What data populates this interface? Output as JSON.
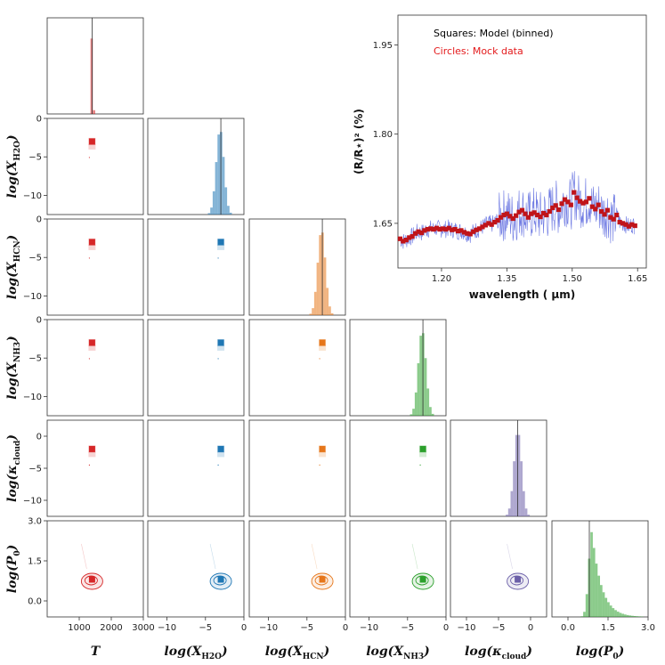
{
  "chart_data": [
    {
      "type": "corner",
      "parameters": [
        {
          "key": "T",
          "label_main": "T",
          "label_sub": "",
          "color": "#d62728",
          "truth": 1400,
          "hist_peak": 1400,
          "hist_spread": 25,
          "scatter_x": 1400,
          "ticks": [
            1000,
            2000,
            3000
          ],
          "range": [
            0,
            3000
          ]
        },
        {
          "key": "H2O",
          "label_main": "log(X",
          "label_sub": "H2O",
          "label_end": ")",
          "color": "#1f77b4",
          "truth": -3.0,
          "hist_peak": -3.1,
          "hist_spread": 0.5,
          "scatter_x": -3.0,
          "ticks": [
            -10,
            -5,
            0
          ],
          "range": [
            -12.5,
            0
          ]
        },
        {
          "key": "HCN",
          "label_main": "log(X",
          "label_sub": "HCN",
          "label_end": ")",
          "color": "#e6761a",
          "truth": -3.0,
          "hist_peak": -3.1,
          "hist_spread": 0.5,
          "scatter_x": -3.0,
          "ticks": [
            -10,
            -5,
            0
          ],
          "range": [
            -12.5,
            0
          ]
        },
        {
          "key": "NH3",
          "label_main": "log(X",
          "label_sub": "NH3",
          "label_end": ")",
          "color": "#2ca02c",
          "truth": -3.0,
          "hist_peak": -3.1,
          "hist_spread": 0.5,
          "scatter_x": -3.0,
          "ticks": [
            -10,
            -5,
            0
          ],
          "range": [
            -12.5,
            0
          ]
        },
        {
          "key": "kappa",
          "label_main": "log(κ",
          "label_sub": "cloud",
          "label_end": ")",
          "color": "#6b5fa8",
          "truth": -2.0,
          "hist_peak": -2.0,
          "hist_spread": 0.6,
          "scatter_x": -2.0,
          "ticks": [
            -10,
            -5,
            0
          ],
          "range": [
            -12.5,
            2.5
          ]
        },
        {
          "key": "P0",
          "label_main": "log(P",
          "label_sub": "0",
          "label_end": ")",
          "color": "#2ca02c",
          "truth": 0.8,
          "hist_peak": 0.9,
          "hist_spread": 0.2,
          "scatter_x": 0.8,
          "ticks": [
            0.0,
            1.5,
            3.0
          ],
          "range": [
            -0.6,
            3.0
          ]
        }
      ],
      "row_ticks": {
        "H2O": [
          "0",
          "−5",
          "−10"
        ],
        "HCN": [
          "0",
          "−5",
          "−10"
        ],
        "NH3": [
          "0",
          "−5",
          "−10"
        ],
        "kappa": [
          "0",
          "−5",
          "−10"
        ],
        "P0": [
          "3.0",
          "1.5",
          "0.0"
        ]
      },
      "col_ticks": {
        "T": [
          "1000",
          "2000",
          "3000"
        ],
        "H2O": [
          "−10",
          "−5",
          "0"
        ],
        "HCN": [
          "−10",
          "−5",
          "0"
        ],
        "NH3": [
          "−10",
          "−5",
          "0"
        ],
        "kappa": [
          "−10",
          "−5",
          "0"
        ],
        "P0": [
          "0.0",
          "1.5",
          "3.0"
        ]
      }
    },
    {
      "type": "line",
      "title": "",
      "xlabel": "wavelength ( μm)",
      "ylabel": "(R/R⋆)² (%)",
      "xlim": [
        1.1,
        1.67
      ],
      "ylim": [
        1.575,
        2.0
      ],
      "xticks": [
        "1.20",
        "1.35",
        "1.50",
        "1.65"
      ],
      "yticks": [
        "1.65",
        "1.80",
        "1.95"
      ],
      "legend": [
        {
          "label": "Squares: Model (binned)",
          "color": "#000000"
        },
        {
          "label": "Circles: Mock data",
          "color": "#e31a1c"
        }
      ],
      "binned_points": [
        [
          1.105,
          1.624
        ],
        [
          1.112,
          1.62
        ],
        [
          1.119,
          1.622
        ],
        [
          1.126,
          1.626
        ],
        [
          1.133,
          1.628
        ],
        [
          1.14,
          1.633
        ],
        [
          1.147,
          1.636
        ],
        [
          1.154,
          1.634
        ],
        [
          1.161,
          1.638
        ],
        [
          1.168,
          1.64
        ],
        [
          1.175,
          1.641
        ],
        [
          1.182,
          1.64
        ],
        [
          1.189,
          1.642
        ],
        [
          1.196,
          1.64
        ],
        [
          1.203,
          1.641
        ],
        [
          1.21,
          1.64
        ],
        [
          1.217,
          1.642
        ],
        [
          1.224,
          1.639
        ],
        [
          1.231,
          1.64
        ],
        [
          1.238,
          1.637
        ],
        [
          1.245,
          1.638
        ],
        [
          1.252,
          1.635
        ],
        [
          1.259,
          1.633
        ],
        [
          1.266,
          1.632
        ],
        [
          1.273,
          1.636
        ],
        [
          1.28,
          1.639
        ],
        [
          1.287,
          1.641
        ],
        [
          1.294,
          1.644
        ],
        [
          1.301,
          1.647
        ],
        [
          1.308,
          1.65
        ],
        [
          1.315,
          1.648
        ],
        [
          1.322,
          1.652
        ],
        [
          1.329,
          1.655
        ],
        [
          1.336,
          1.66
        ],
        [
          1.343,
          1.664
        ],
        [
          1.35,
          1.666
        ],
        [
          1.357,
          1.662
        ],
        [
          1.364,
          1.658
        ],
        [
          1.371,
          1.663
        ],
        [
          1.378,
          1.669
        ],
        [
          1.385,
          1.672
        ],
        [
          1.392,
          1.666
        ],
        [
          1.399,
          1.66
        ],
        [
          1.406,
          1.666
        ],
        [
          1.413,
          1.668
        ],
        [
          1.42,
          1.664
        ],
        [
          1.427,
          1.661
        ],
        [
          1.434,
          1.667
        ],
        [
          1.441,
          1.664
        ],
        [
          1.448,
          1.67
        ],
        [
          1.455,
          1.676
        ],
        [
          1.462,
          1.68
        ],
        [
          1.469,
          1.673
        ],
        [
          1.476,
          1.683
        ],
        [
          1.483,
          1.69
        ],
        [
          1.49,
          1.686
        ],
        [
          1.497,
          1.681
        ],
        [
          1.504,
          1.702
        ],
        [
          1.511,
          1.693
        ],
        [
          1.518,
          1.687
        ],
        [
          1.525,
          1.684
        ],
        [
          1.532,
          1.686
        ],
        [
          1.539,
          1.692
        ],
        [
          1.546,
          1.678
        ],
        [
          1.553,
          1.674
        ],
        [
          1.56,
          1.681
        ],
        [
          1.567,
          1.67
        ],
        [
          1.574,
          1.665
        ],
        [
          1.581,
          1.672
        ],
        [
          1.588,
          1.66
        ],
        [
          1.595,
          1.657
        ],
        [
          1.602,
          1.664
        ],
        [
          1.609,
          1.652
        ],
        [
          1.616,
          1.65
        ],
        [
          1.623,
          1.648
        ],
        [
          1.63,
          1.645
        ],
        [
          1.637,
          1.648
        ],
        [
          1.644,
          1.646
        ]
      ]
    }
  ]
}
